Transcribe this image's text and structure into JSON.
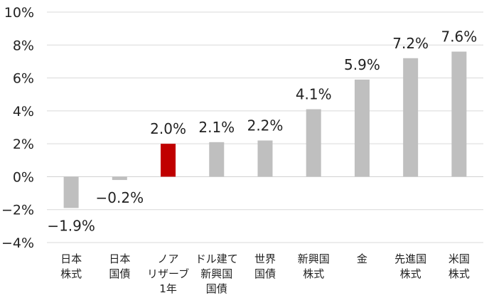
{
  "chart_data": {
    "type": "bar",
    "title": "",
    "xlabel": "",
    "ylabel": "",
    "ylim": [
      -4,
      10
    ],
    "yticks": [
      -4,
      -2,
      0,
      2,
      4,
      6,
      8,
      10
    ],
    "ytick_labels": [
      "−4%",
      "−2%",
      "0%",
      "2%",
      "4%",
      "6%",
      "8%",
      "10%"
    ],
    "grid": true,
    "legend": "none",
    "categories": [
      [
        "日本",
        "株式"
      ],
      [
        "日本",
        "国債"
      ],
      [
        "ノア",
        "リザーブ",
        "1年"
      ],
      [
        "ドル建て",
        "新興国",
        "国債"
      ],
      [
        "世界",
        "国債"
      ],
      [
        "新興国",
        "株式"
      ],
      [
        "金"
      ],
      [
        "先進国",
        "株式"
      ],
      [
        "米国",
        "株式"
      ]
    ],
    "values": [
      -1.9,
      -0.2,
      2.0,
      2.1,
      2.2,
      4.1,
      5.9,
      7.2,
      7.6
    ],
    "value_labels": [
      "−1.9%",
      "−0.2%",
      "2.0%",
      "2.1%",
      "2.2%",
      "4.1%",
      "5.9%",
      "7.2%",
      "7.6%"
    ],
    "colors": [
      "#bfbfbf",
      "#bfbfbf",
      "#c00000",
      "#bfbfbf",
      "#bfbfbf",
      "#bfbfbf",
      "#bfbfbf",
      "#bfbfbf",
      "#bfbfbf"
    ]
  }
}
